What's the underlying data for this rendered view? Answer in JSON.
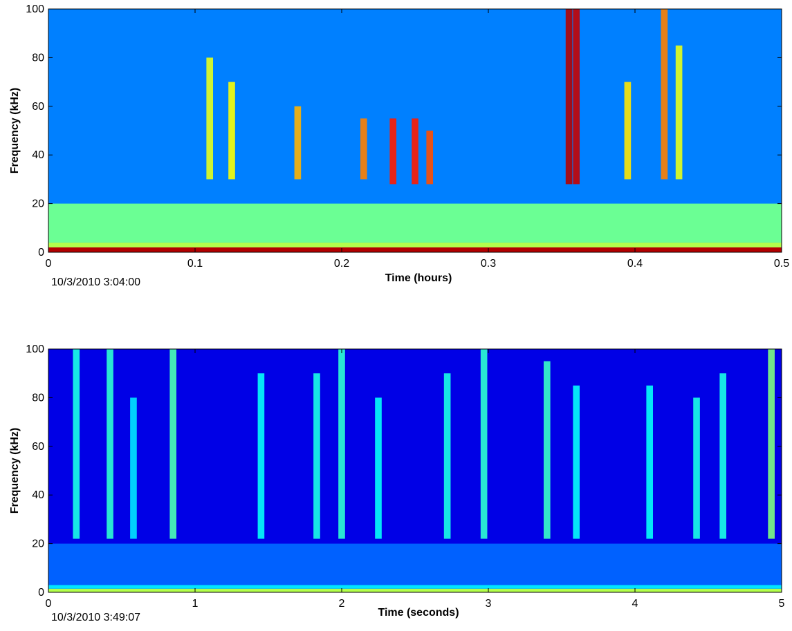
{
  "chart_data": [
    {
      "type": "heatmap",
      "title": "",
      "xlabel": "Time (hours)",
      "ylabel": "Frequency (kHz)",
      "xlim": [
        0,
        0.5
      ],
      "ylim": [
        0,
        100
      ],
      "xticks": [
        "0",
        "0.1",
        "0.2",
        "0.3",
        "0.4",
        "0.5"
      ],
      "yticks": [
        "0",
        "20",
        "40",
        "60",
        "80",
        "100"
      ],
      "timestamp": "10/3/2010 3:04:00",
      "colormap": "jet",
      "background_level": 0.25,
      "bands": [
        {
          "f_min": 0,
          "f_max": 2,
          "level": 0.95
        },
        {
          "f_min": 2,
          "f_max": 4,
          "level": 0.55
        },
        {
          "f_min": 4,
          "f_max": 20,
          "level": 0.48
        }
      ],
      "events": [
        {
          "t": 0.11,
          "f_min": 30,
          "f_max": 80,
          "level": 0.6
        },
        {
          "t": 0.125,
          "f_min": 30,
          "f_max": 70,
          "level": 0.62
        },
        {
          "t": 0.17,
          "f_min": 30,
          "f_max": 60,
          "level": 0.7
        },
        {
          "t": 0.215,
          "f_min": 30,
          "f_max": 55,
          "level": 0.75
        },
        {
          "t": 0.235,
          "f_min": 28,
          "f_max": 55,
          "level": 0.85
        },
        {
          "t": 0.25,
          "f_min": 28,
          "f_max": 55,
          "level": 0.85
        },
        {
          "t": 0.26,
          "f_min": 28,
          "f_max": 50,
          "level": 0.8
        },
        {
          "t": 0.355,
          "f_min": 28,
          "f_max": 100,
          "level": 0.95
        },
        {
          "t": 0.36,
          "f_min": 28,
          "f_max": 100,
          "level": 0.93
        },
        {
          "t": 0.395,
          "f_min": 30,
          "f_max": 70,
          "level": 0.65
        },
        {
          "t": 0.42,
          "f_min": 30,
          "f_max": 100,
          "level": 0.75
        },
        {
          "t": 0.43,
          "f_min": 30,
          "f_max": 85,
          "level": 0.6
        }
      ]
    },
    {
      "type": "heatmap",
      "title": "",
      "xlabel": "Time (seconds)",
      "ylabel": "Frequency (kHz)",
      "xlim": [
        0,
        5
      ],
      "ylim": [
        0,
        100
      ],
      "xticks": [
        "0",
        "1",
        "2",
        "3",
        "4",
        "5"
      ],
      "yticks": [
        "0",
        "20",
        "40",
        "60",
        "80",
        "100"
      ],
      "timestamp": "10/3/2010 3:49:07",
      "colormap": "jet",
      "background_level": 0.1,
      "bands": [
        {
          "f_min": 0,
          "f_max": 1.5,
          "level": 0.55
        },
        {
          "f_min": 1.5,
          "f_max": 3,
          "level": 0.35
        },
        {
          "f_min": 3,
          "f_max": 20,
          "level": 0.22
        }
      ],
      "events": [
        {
          "t": 0.19,
          "f_min": 22,
          "f_max": 100,
          "level": 0.4
        },
        {
          "t": 0.42,
          "f_min": 22,
          "f_max": 100,
          "level": 0.42
        },
        {
          "t": 0.58,
          "f_min": 22,
          "f_max": 80,
          "level": 0.35
        },
        {
          "t": 0.85,
          "f_min": 22,
          "f_max": 100,
          "level": 0.45
        },
        {
          "t": 1.45,
          "f_min": 22,
          "f_max": 90,
          "level": 0.38
        },
        {
          "t": 1.83,
          "f_min": 22,
          "f_max": 90,
          "level": 0.4
        },
        {
          "t": 2.0,
          "f_min": 22,
          "f_max": 100,
          "level": 0.42
        },
        {
          "t": 2.25,
          "f_min": 22,
          "f_max": 80,
          "level": 0.38
        },
        {
          "t": 2.72,
          "f_min": 22,
          "f_max": 90,
          "level": 0.4
        },
        {
          "t": 2.97,
          "f_min": 22,
          "f_max": 100,
          "level": 0.42
        },
        {
          "t": 3.4,
          "f_min": 22,
          "f_max": 95,
          "level": 0.43
        },
        {
          "t": 3.6,
          "f_min": 22,
          "f_max": 85,
          "level": 0.38
        },
        {
          "t": 4.1,
          "f_min": 22,
          "f_max": 85,
          "level": 0.38
        },
        {
          "t": 4.42,
          "f_min": 22,
          "f_max": 80,
          "level": 0.4
        },
        {
          "t": 4.6,
          "f_min": 22,
          "f_max": 90,
          "level": 0.4
        },
        {
          "t": 4.93,
          "f_min": 22,
          "f_max": 100,
          "level": 0.5
        }
      ]
    }
  ]
}
